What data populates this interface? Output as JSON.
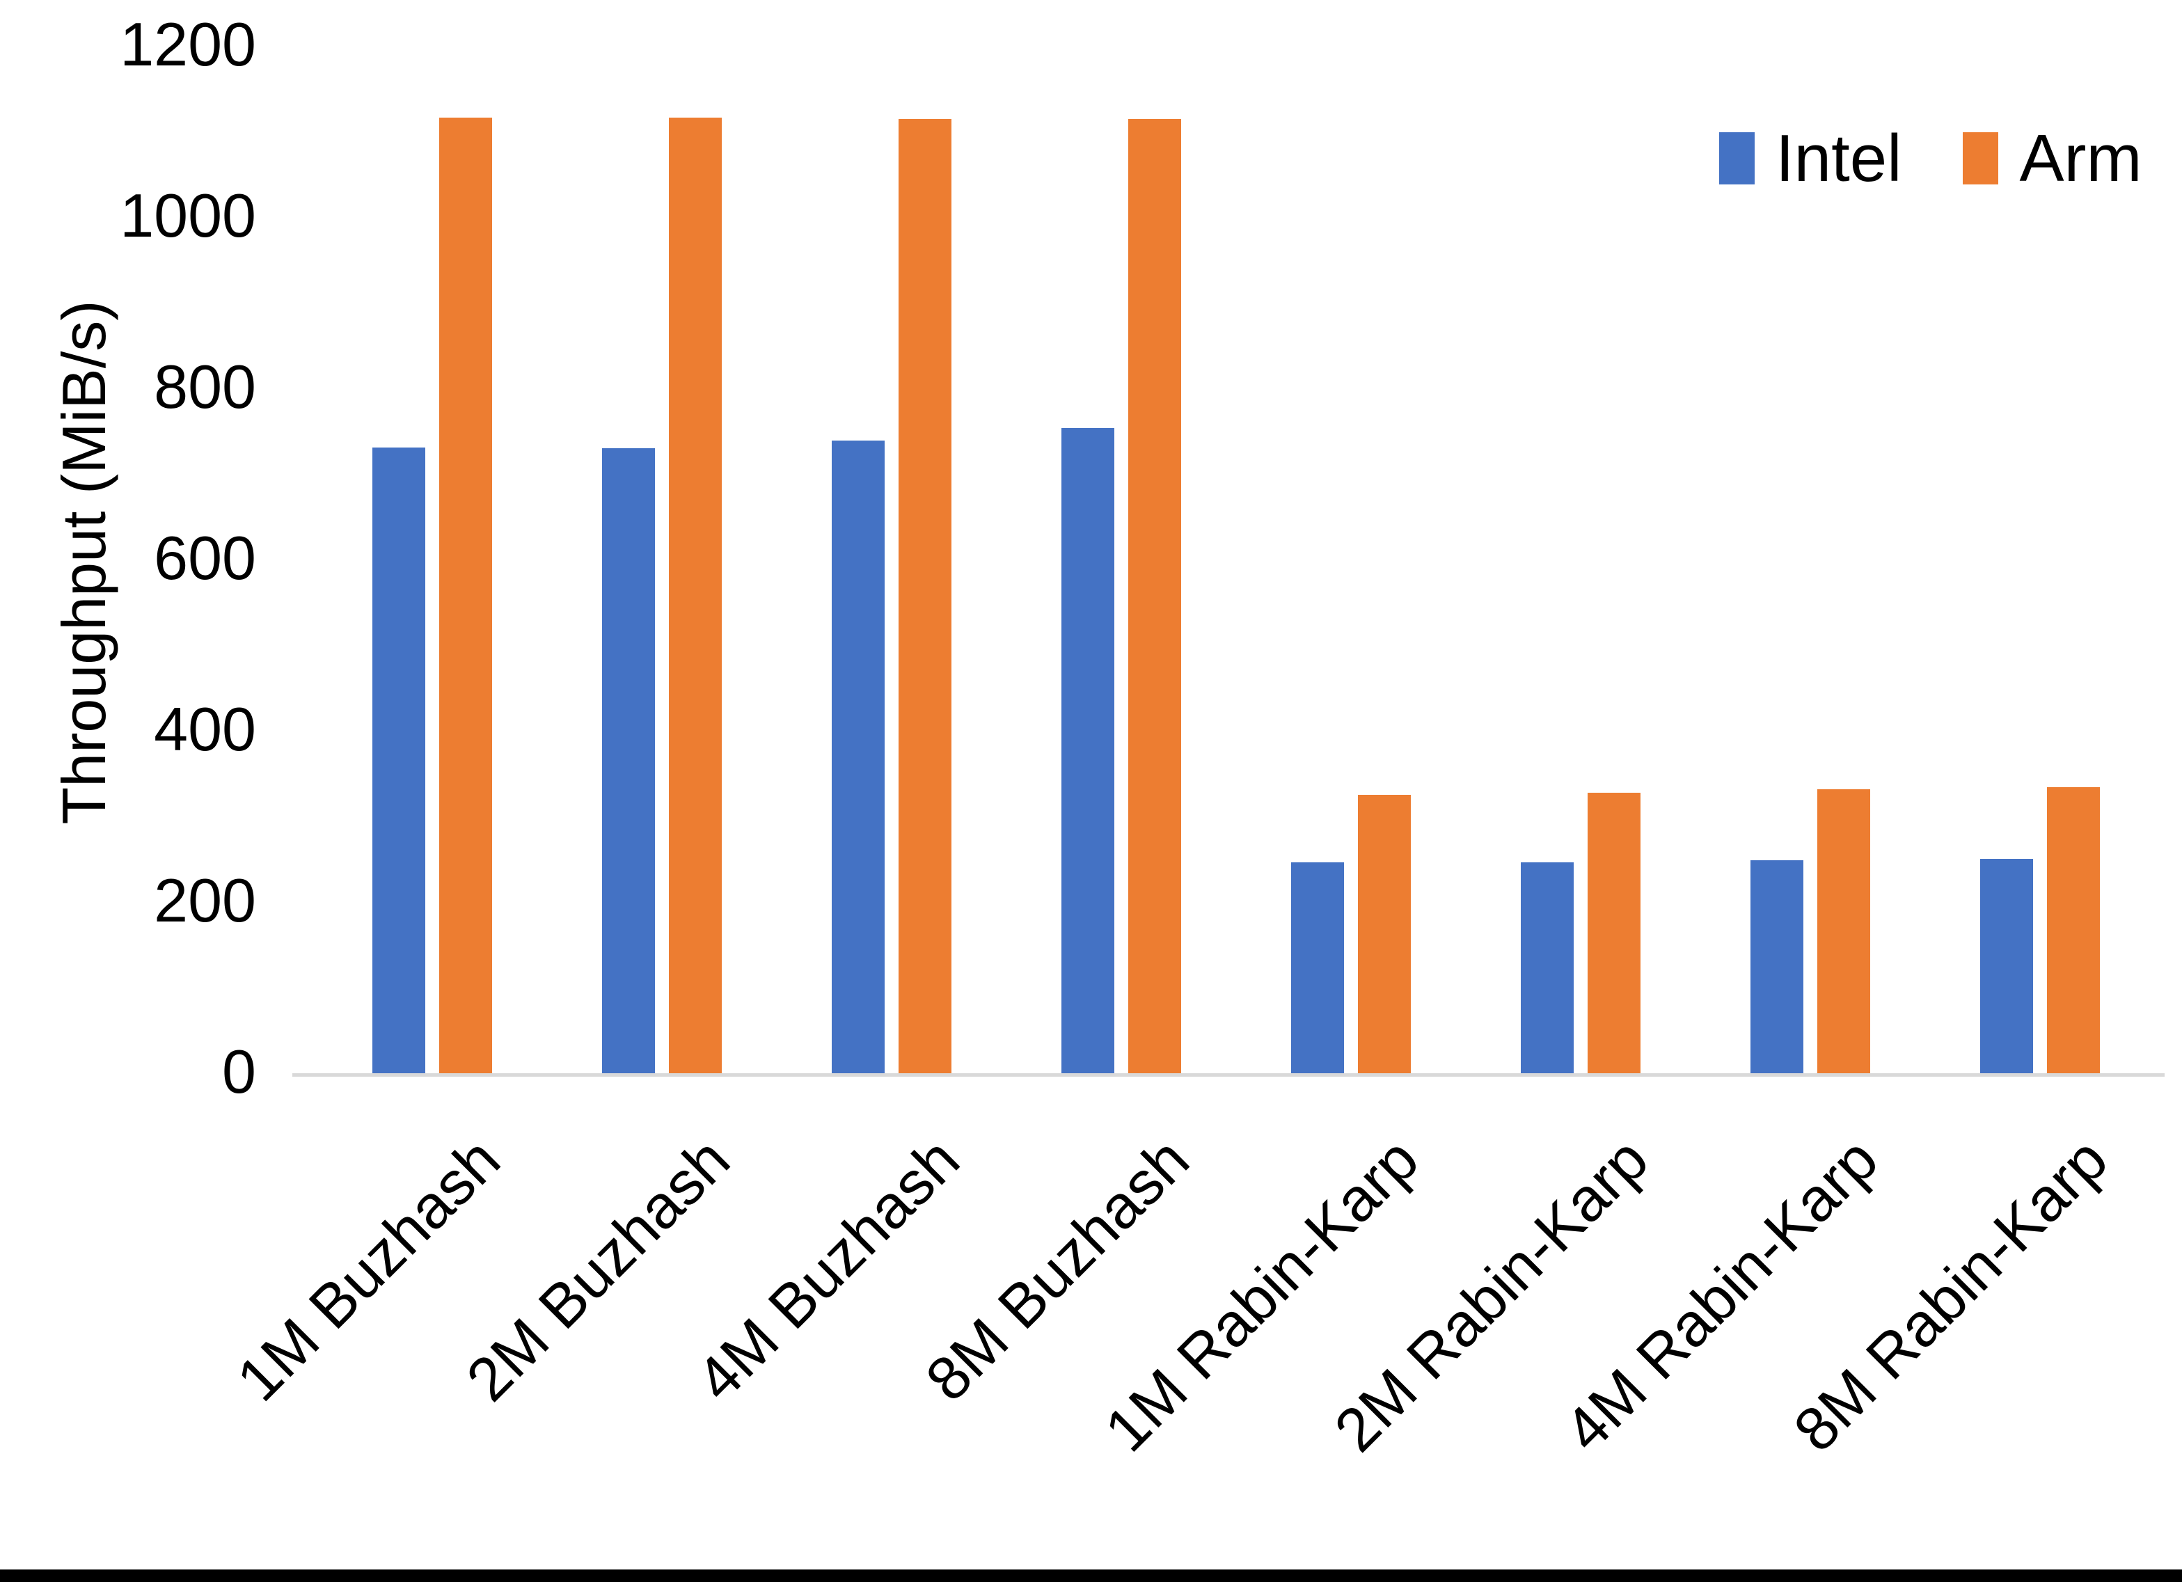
{
  "chart_data": {
    "type": "bar",
    "title": "",
    "xlabel": "",
    "ylabel": "Throughput (MiB/s)",
    "categories": [
      "1M Buzhash",
      "2M Buzhash",
      "4M Buzhash",
      "8M Buzhash",
      "1M Rabin-Karp",
      "2M Rabin-Karp",
      "4M Rabin-Karp",
      "8M Rabin-Karp"
    ],
    "series": [
      {
        "name": "Intel",
        "color": "#4472C4",
        "values": [
          731,
          730,
          739,
          754,
          246,
          246,
          249,
          250
        ]
      },
      {
        "name": "Arm",
        "color": "#ED7D31",
        "values": [
          1116,
          1116,
          1115,
          1115,
          325,
          328,
          332,
          334
        ]
      }
    ],
    "y_ticks": [
      0,
      200,
      400,
      600,
      800,
      1000,
      1200
    ],
    "ylim": [
      0,
      1200
    ],
    "grid": false,
    "legend_position": "top-right",
    "axis_line_color": "#D9D9D9",
    "text_color": "#000000",
    "background_color": "#FFFFFF",
    "bottom_border_color": "#000000"
  }
}
